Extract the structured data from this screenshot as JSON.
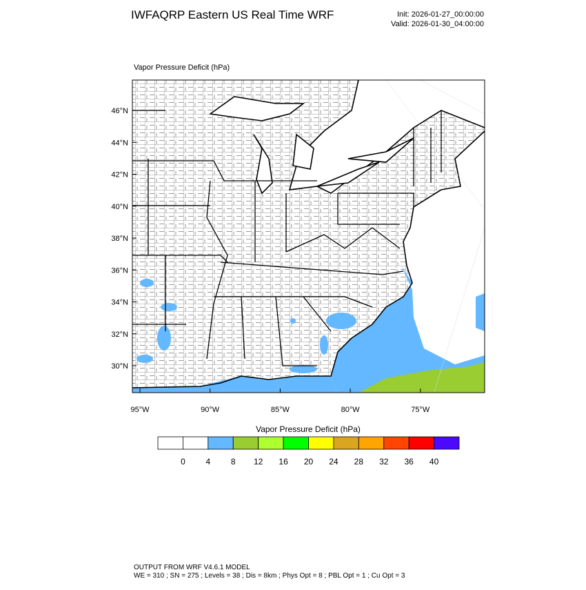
{
  "header": {
    "title": "IWFAQRP Eastern US Real Time WRF",
    "init": "Init: 2026-01-27_00:00:00",
    "valid": "Valid: 2026-01-30_04:00:00"
  },
  "map": {
    "label": "Vapor Pressure Deficit   (hPa)",
    "lat_ticks": [
      "46°N",
      "44°N",
      "42°N",
      "40°N",
      "38°N",
      "36°N",
      "34°N",
      "32°N",
      "30°N"
    ],
    "lon_ticks": [
      "95°W",
      "90°W",
      "85°W",
      "80°W",
      "75°W"
    ]
  },
  "colorbar": {
    "title": "Vapor Pressure Deficit  (hPa)",
    "labels": [
      0,
      4,
      8,
      12,
      16,
      20,
      24,
      28,
      32,
      36,
      40
    ],
    "colors": [
      "#ffffff",
      "#ffffff",
      "#63b8ff",
      "#9acd32",
      "#adff2f",
      "#00ff00",
      "#ffff00",
      "#daa520",
      "#ffa500",
      "#ff4500",
      "#ff0000",
      "#4b0aff"
    ]
  },
  "footer": {
    "line1": "OUTPUT FROM WRF V4.6.1 MODEL",
    "line2": "WE = 310 ; SN = 275 ; Levels = 38 ; Dis = 8km ; Phys Opt = 8 ; PBL Opt = 1 ; Cu Opt = 3"
  }
}
